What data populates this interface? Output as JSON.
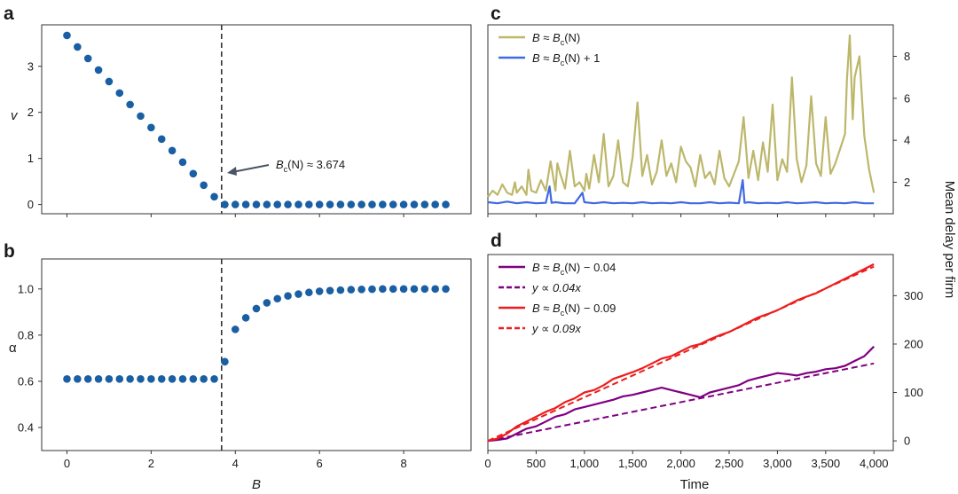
{
  "panels": {
    "a": "a",
    "b": "b",
    "c": "c",
    "d": "d"
  },
  "labels": {
    "a_ylabel": "v",
    "b_ylabel": "α",
    "left_xlabel": "B",
    "right_xlabel": "Time",
    "right_ylabel": "Mean delay per firm"
  },
  "colors": {
    "dots": "#1a5fa3",
    "olive": "#bdb76b",
    "blue": "#4169e1",
    "purple": "#800080",
    "red": "#ee1c1c",
    "dashed_vline": "#333333",
    "arrow": "#4a5466"
  },
  "chart_data": [
    {
      "id": "a",
      "type": "scatter",
      "xlabel": "",
      "ylabel": "v",
      "xlim": [
        -0.6,
        9.6
      ],
      "ylim": [
        -0.2,
        3.9
      ],
      "yticks": [
        0,
        1,
        2,
        3
      ],
      "critical_B": 3.674,
      "annotation": {
        "prefix": "B",
        "subscript": "c",
        "suffix": "(N) ≈ 3.674"
      },
      "x": [
        0,
        0.25,
        0.5,
        0.75,
        1.0,
        1.25,
        1.5,
        1.75,
        2.0,
        2.25,
        2.5,
        2.75,
        3.0,
        3.25,
        3.5,
        3.75,
        4.0,
        4.25,
        4.5,
        4.75,
        5.0,
        5.25,
        5.5,
        5.75,
        6.0,
        6.25,
        6.5,
        6.75,
        7.0,
        7.25,
        7.5,
        7.75,
        8.0,
        8.25,
        8.5,
        8.75,
        9.0
      ],
      "y": [
        3.67,
        3.42,
        3.17,
        2.92,
        2.67,
        2.42,
        2.17,
        1.92,
        1.67,
        1.42,
        1.17,
        0.92,
        0.67,
        0.42,
        0.17,
        0,
        0,
        0,
        0,
        0,
        0,
        0,
        0,
        0,
        0,
        0,
        0,
        0,
        0,
        0,
        0,
        0,
        0,
        0,
        0,
        0,
        0
      ]
    },
    {
      "id": "b",
      "type": "scatter",
      "xlabel": "B",
      "ylabel": "α",
      "xlim": [
        -0.6,
        9.6
      ],
      "ylim": [
        0.3,
        1.13
      ],
      "xticks": [
        0,
        2,
        4,
        6,
        8
      ],
      "yticks": [
        0.4,
        0.6,
        0.8,
        1.0
      ],
      "critical_B": 3.674,
      "x": [
        0,
        0.25,
        0.5,
        0.75,
        1.0,
        1.25,
        1.5,
        1.75,
        2.0,
        2.25,
        2.5,
        2.75,
        3.0,
        3.25,
        3.5,
        3.75,
        4.0,
        4.25,
        4.5,
        4.75,
        5.0,
        5.25,
        5.5,
        5.75,
        6.0,
        6.25,
        6.5,
        6.75,
        7.0,
        7.25,
        7.5,
        7.75,
        8.0,
        8.25,
        8.5,
        8.75,
        9.0
      ],
      "y": [
        0.61,
        0.61,
        0.61,
        0.61,
        0.61,
        0.61,
        0.61,
        0.61,
        0.61,
        0.61,
        0.61,
        0.61,
        0.61,
        0.61,
        0.61,
        0.685,
        0.825,
        0.875,
        0.915,
        0.94,
        0.958,
        0.97,
        0.978,
        0.985,
        0.99,
        0.993,
        0.995,
        0.997,
        0.998,
        0.999,
        1.0,
        1.0,
        1.0,
        1.0,
        1.0,
        1.0,
        1.0
      ]
    },
    {
      "id": "c",
      "type": "line",
      "xlabel": "",
      "ylabel": "Mean delay per firm",
      "xlim": [
        0,
        4200
      ],
      "ylim": [
        0.5,
        9.5
      ],
      "yticks": [
        2,
        4,
        6,
        8
      ],
      "series": [
        {
          "name_prefix": "B ≈ B",
          "name_subscript": "c",
          "name_suffix": "(N)",
          "color": "#bdb76b",
          "x": [
            0,
            50,
            100,
            150,
            200,
            250,
            280,
            300,
            350,
            400,
            420,
            450,
            500,
            550,
            600,
            650,
            700,
            720,
            750,
            800,
            850,
            900,
            950,
            1000,
            1020,
            1050,
            1100,
            1150,
            1200,
            1250,
            1300,
            1350,
            1400,
            1450,
            1500,
            1550,
            1600,
            1650,
            1700,
            1750,
            1800,
            1850,
            1900,
            1950,
            2000,
            2050,
            2100,
            2150,
            2200,
            2250,
            2300,
            2350,
            2400,
            2450,
            2500,
            2550,
            2600,
            2650,
            2700,
            2750,
            2800,
            2850,
            2900,
            2950,
            3000,
            3050,
            3100,
            3150,
            3200,
            3250,
            3300,
            3350,
            3400,
            3450,
            3500,
            3550,
            3600,
            3650,
            3700,
            3720,
            3750,
            3780,
            3800,
            3850,
            3900,
            3950,
            4000
          ],
          "y": [
            1.3,
            1.6,
            1.4,
            1.9,
            1.5,
            1.4,
            2.0,
            1.5,
            1.8,
            1.4,
            2.6,
            1.6,
            1.5,
            2.1,
            1.6,
            3.0,
            1.6,
            2.9,
            2.4,
            1.7,
            3.5,
            1.8,
            2.0,
            1.6,
            2.4,
            1.7,
            3.3,
            2.0,
            4.3,
            1.8,
            2.3,
            4.0,
            2.0,
            1.8,
            3.2,
            5.8,
            2.3,
            3.3,
            1.9,
            2.5,
            4.0,
            2.3,
            2.9,
            2.0,
            3.7,
            3.0,
            2.7,
            1.8,
            3.3,
            2.2,
            2.5,
            1.9,
            3.5,
            2.2,
            1.8,
            2.4,
            3.0,
            5.1,
            2.2,
            3.5,
            2.1,
            3.9,
            2.5,
            5.7,
            2.1,
            3.1,
            2.5,
            7.0,
            3.1,
            2.0,
            2.8,
            6.1,
            2.9,
            2.3,
            5.1,
            2.4,
            2.9,
            3.6,
            4.3,
            6.9,
            9.0,
            5.0,
            7.0,
            8.0,
            4.2,
            2.6,
            1.5
          ]
        },
        {
          "name_prefix": "B ≈ B",
          "name_subscript": "c",
          "name_suffix": "(N) + 1",
          "color": "#4169e1",
          "x": [
            0,
            100,
            200,
            300,
            400,
            500,
            600,
            640,
            660,
            700,
            800,
            900,
            980,
            1000,
            1100,
            1200,
            1300,
            1400,
            1500,
            1600,
            1700,
            1800,
            1900,
            2000,
            2100,
            2200,
            2300,
            2400,
            2500,
            2600,
            2640,
            2660,
            2700,
            2800,
            2900,
            3000,
            3100,
            3200,
            3300,
            3400,
            3500,
            3600,
            3700,
            3800,
            3900,
            4000
          ],
          "y": [
            1.05,
            1.0,
            1.08,
            1.0,
            1.05,
            1.0,
            1.02,
            1.8,
            1.02,
            1.05,
            1.0,
            1.0,
            1.5,
            1.05,
            1.0,
            1.05,
            1.0,
            1.02,
            1.0,
            1.05,
            1.0,
            1.02,
            1.0,
            1.05,
            1.0,
            1.0,
            1.05,
            1.0,
            1.03,
            1.0,
            2.1,
            1.02,
            1.05,
            1.0,
            1.02,
            1.0,
            1.05,
            1.0,
            1.02,
            1.05,
            1.0,
            1.02,
            1.0,
            1.05,
            1.0,
            1.0
          ]
        }
      ]
    },
    {
      "id": "d",
      "type": "line",
      "xlabel": "Time",
      "ylabel": "",
      "xlim": [
        0,
        4200
      ],
      "ylim": [
        -20,
        385
      ],
      "xticks": [
        0,
        500,
        1000,
        1500,
        2000,
        2500,
        3000,
        3500,
        4000
      ],
      "xticklabels": [
        "0",
        "500",
        "1,000",
        "1,500",
        "2,000",
        "2,500",
        "3,000",
        "3,500",
        "4,000"
      ],
      "yticks": [
        0,
        100,
        200,
        300
      ],
      "series": [
        {
          "name_prefix": "B ≈ B",
          "name_subscript": "c",
          "name_suffix": "(N) − 0.04",
          "color": "#800080",
          "dashed": false,
          "x": [
            0,
            100,
            200,
            300,
            400,
            500,
            600,
            700,
            800,
            900,
            1000,
            1100,
            1200,
            1300,
            1400,
            1500,
            1600,
            1700,
            1800,
            1900,
            2000,
            2100,
            2200,
            2300,
            2400,
            2500,
            2600,
            2700,
            2800,
            2900,
            3000,
            3100,
            3200,
            3300,
            3400,
            3500,
            3600,
            3700,
            3800,
            3900,
            4000
          ],
          "y": [
            0,
            2,
            5,
            15,
            25,
            30,
            40,
            50,
            55,
            65,
            70,
            75,
            80,
            85,
            92,
            95,
            100,
            105,
            110,
            105,
            100,
            95,
            90,
            100,
            105,
            110,
            115,
            125,
            130,
            135,
            140,
            138,
            135,
            140,
            143,
            148,
            150,
            155,
            165,
            175,
            195
          ]
        },
        {
          "name_prefix": "y ∝ 0.04",
          "name_suffix": "x",
          "color": "#800080",
          "dashed": true,
          "x": [
            0,
            4000
          ],
          "y": [
            0,
            160
          ]
        },
        {
          "name_prefix": "B ≈ B",
          "name_subscript": "c",
          "name_suffix": "(N) − 0.09",
          "color": "#ee1c1c",
          "dashed": false,
          "x": [
            0,
            100,
            200,
            300,
            400,
            500,
            600,
            700,
            800,
            900,
            1000,
            1100,
            1200,
            1300,
            1400,
            1500,
            1600,
            1700,
            1800,
            1900,
            2000,
            2100,
            2200,
            2300,
            2400,
            2500,
            2600,
            2700,
            2800,
            2900,
            3000,
            3100,
            3200,
            3300,
            3400,
            3500,
            3600,
            3700,
            3800,
            3900,
            4000
          ],
          "y": [
            0,
            5,
            15,
            30,
            40,
            50,
            60,
            68,
            80,
            88,
            100,
            105,
            115,
            128,
            135,
            142,
            150,
            160,
            170,
            175,
            185,
            195,
            200,
            210,
            218,
            225,
            235,
            245,
            255,
            262,
            270,
            280,
            290,
            298,
            305,
            315,
            325,
            335,
            345,
            355,
            365
          ]
        },
        {
          "name_prefix": "y ∝ 0.09",
          "name_suffix": "x",
          "color": "#ee1c1c",
          "dashed": true,
          "x": [
            0,
            4000
          ],
          "y": [
            0,
            360
          ]
        }
      ]
    }
  ]
}
